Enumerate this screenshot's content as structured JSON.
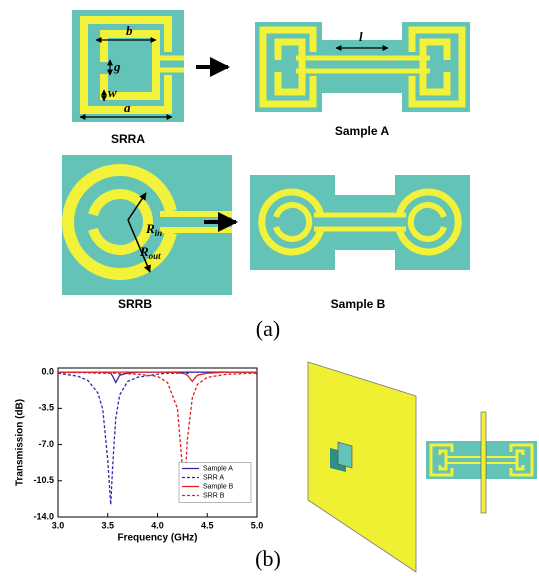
{
  "panel_a": {
    "label": "(a)",
    "srra_caption": "SRRA",
    "sample_a_caption": "Sample A",
    "srrb_caption": "SRRB",
    "sample_b_caption": "Sample B",
    "dimension_labels": {
      "a": "a",
      "b": "b",
      "g": "g",
      "w": "w",
      "l": "l",
      "r_in": "R",
      "r_in_sub": "in",
      "r_out": "R",
      "r_out_sub": "out"
    }
  },
  "panel_b": {
    "label": "(b)"
  },
  "chart_data": {
    "type": "line",
    "xlabel": "Frequency (GHz)",
    "ylabel": "Transmission (dB)",
    "x": [
      3.0,
      3.2,
      3.3,
      3.4,
      3.45,
      3.5,
      3.53,
      3.55,
      3.58,
      3.62,
      3.7,
      3.8,
      4.0,
      4.1,
      4.2,
      4.24,
      4.27,
      4.3,
      4.35,
      4.4,
      4.5,
      4.7,
      5.0
    ],
    "series": [
      {
        "name": "Sample A",
        "color": "#2a2aa8",
        "linestyle": "solid",
        "values": [
          0,
          0,
          0,
          0,
          0,
          -0.05,
          -0.1,
          -0.4,
          -1.0,
          -0.3,
          -0.1,
          0,
          0,
          0,
          0,
          0,
          0,
          0,
          0,
          0,
          0,
          0,
          0
        ]
      },
      {
        "name": "SRR A",
        "color": "#2a2aa8",
        "linestyle": "dashed",
        "values": [
          -0.1,
          -0.4,
          -0.8,
          -2.0,
          -3.6,
          -8.5,
          -12.8,
          -9.0,
          -4.5,
          -2.2,
          -0.9,
          -0.5,
          -0.2,
          -0.1,
          -0.1,
          -0.1,
          -0.1,
          -0.1,
          0,
          0,
          0,
          0,
          0
        ]
      },
      {
        "name": "Sample B",
        "color": "#e02020",
        "linestyle": "solid",
        "values": [
          0,
          0,
          0,
          0,
          0,
          0,
          0,
          0,
          0,
          0,
          0,
          0,
          0,
          0,
          -0.05,
          -0.1,
          -0.15,
          -0.3,
          -0.9,
          -0.3,
          -0.1,
          0,
          0
        ]
      },
      {
        "name": "SRR B",
        "color": "#e02020",
        "linestyle": "dashed",
        "values": [
          -0.05,
          -0.05,
          -0.05,
          -0.1,
          -0.1,
          -0.1,
          -0.1,
          -0.1,
          -0.1,
          -0.15,
          -0.15,
          -0.2,
          -0.4,
          -1.0,
          -3.5,
          -8.0,
          -11.8,
          -6.5,
          -2.5,
          -1.2,
          -0.5,
          -0.2,
          -0.1
        ]
      }
    ],
    "xlim": [
      3.0,
      5.0
    ],
    "ylim": [
      -14.0,
      0.4
    ],
    "xticks": [
      {
        "value": 3.0,
        "label": "3.0"
      },
      3.5,
      {
        "value": 4.0,
        "label": "4.0"
      },
      4.5,
      {
        "value": 5.0,
        "label": "5.0"
      }
    ],
    "yticks": [
      {
        "value": 0,
        "label": "0.0"
      },
      -3.5,
      {
        "value": -7.0,
        "label": "-7.0"
      },
      -10.5,
      {
        "value": -14.0,
        "label": "-14.0"
      }
    ],
    "legend": "center-right"
  }
}
